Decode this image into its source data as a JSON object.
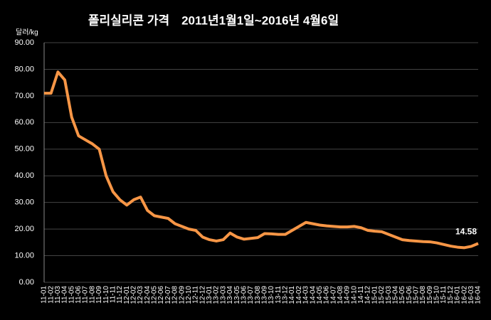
{
  "chart_data": {
    "type": "line",
    "title": "폴리실리콘 가격　2011년1월1일~2016년 4월6일",
    "y_axis_label": "달러/kg",
    "categories": [
      "11-01",
      "11-02",
      "11-03",
      "11-04",
      "11-05",
      "11-06",
      "11-07",
      "11-08",
      "11-09",
      "11-10",
      "11-11",
      "11-12",
      "12-01",
      "12-02",
      "12-03",
      "12-04",
      "12-05",
      "12-06",
      "12-07",
      "12-08",
      "12-09",
      "12-10",
      "12-11",
      "12-12",
      "13-01",
      "13-02",
      "13-03",
      "13-04",
      "13-05",
      "13-06",
      "13-07",
      "13-08",
      "13-09",
      "13-10",
      "13-11",
      "13-12",
      "14-01",
      "14-02",
      "14-03",
      "14-04",
      "14-05",
      "14-06",
      "14-07",
      "14-08",
      "14-09",
      "14-10",
      "14-11",
      "14-12",
      "15-01",
      "15-02",
      "15-03",
      "15-04",
      "15-05",
      "15-06",
      "15-07",
      "15-08",
      "15-09",
      "15-10",
      "15-11",
      "15-12",
      "16-01",
      "16-02",
      "16-03",
      "16-04"
    ],
    "series": [
      {
        "color": "#f79646",
        "values": [
          71,
          71,
          79,
          76,
          62,
          55,
          53.5,
          52,
          50,
          40,
          34,
          31,
          29,
          31,
          32,
          27,
          25,
          24.5,
          24,
          22,
          21,
          20,
          19.5,
          17,
          16,
          15.5,
          16,
          18.5,
          17,
          16.2,
          16.5,
          16.8,
          18.3,
          18.2,
          18,
          18,
          19.5,
          21,
          22.5,
          22,
          21.5,
          21.2,
          21,
          20.8,
          20.8,
          21,
          20.5,
          19.5,
          19.2,
          19,
          18,
          17,
          16,
          15.7,
          15.5,
          15.3,
          15.2,
          14.8,
          14.2,
          13.6,
          13.2,
          13,
          13.5,
          14.58
        ]
      }
    ],
    "ylim": [
      0,
      90
    ],
    "yticks": [
      {
        "value": 0,
        "label": "0.00"
      },
      {
        "value": 10,
        "label": "10.00"
      },
      {
        "value": 20,
        "label": "20.00"
      },
      {
        "value": 30,
        "label": "30.00"
      },
      {
        "value": 40,
        "label": "40.00"
      },
      {
        "value": 50,
        "label": "50.00"
      },
      {
        "value": 60,
        "label": "60.00"
      },
      {
        "value": 70,
        "label": "70.00"
      },
      {
        "value": 80,
        "label": "80.00"
      },
      {
        "value": 90,
        "label": "90.00"
      }
    ],
    "grid": true
  }
}
